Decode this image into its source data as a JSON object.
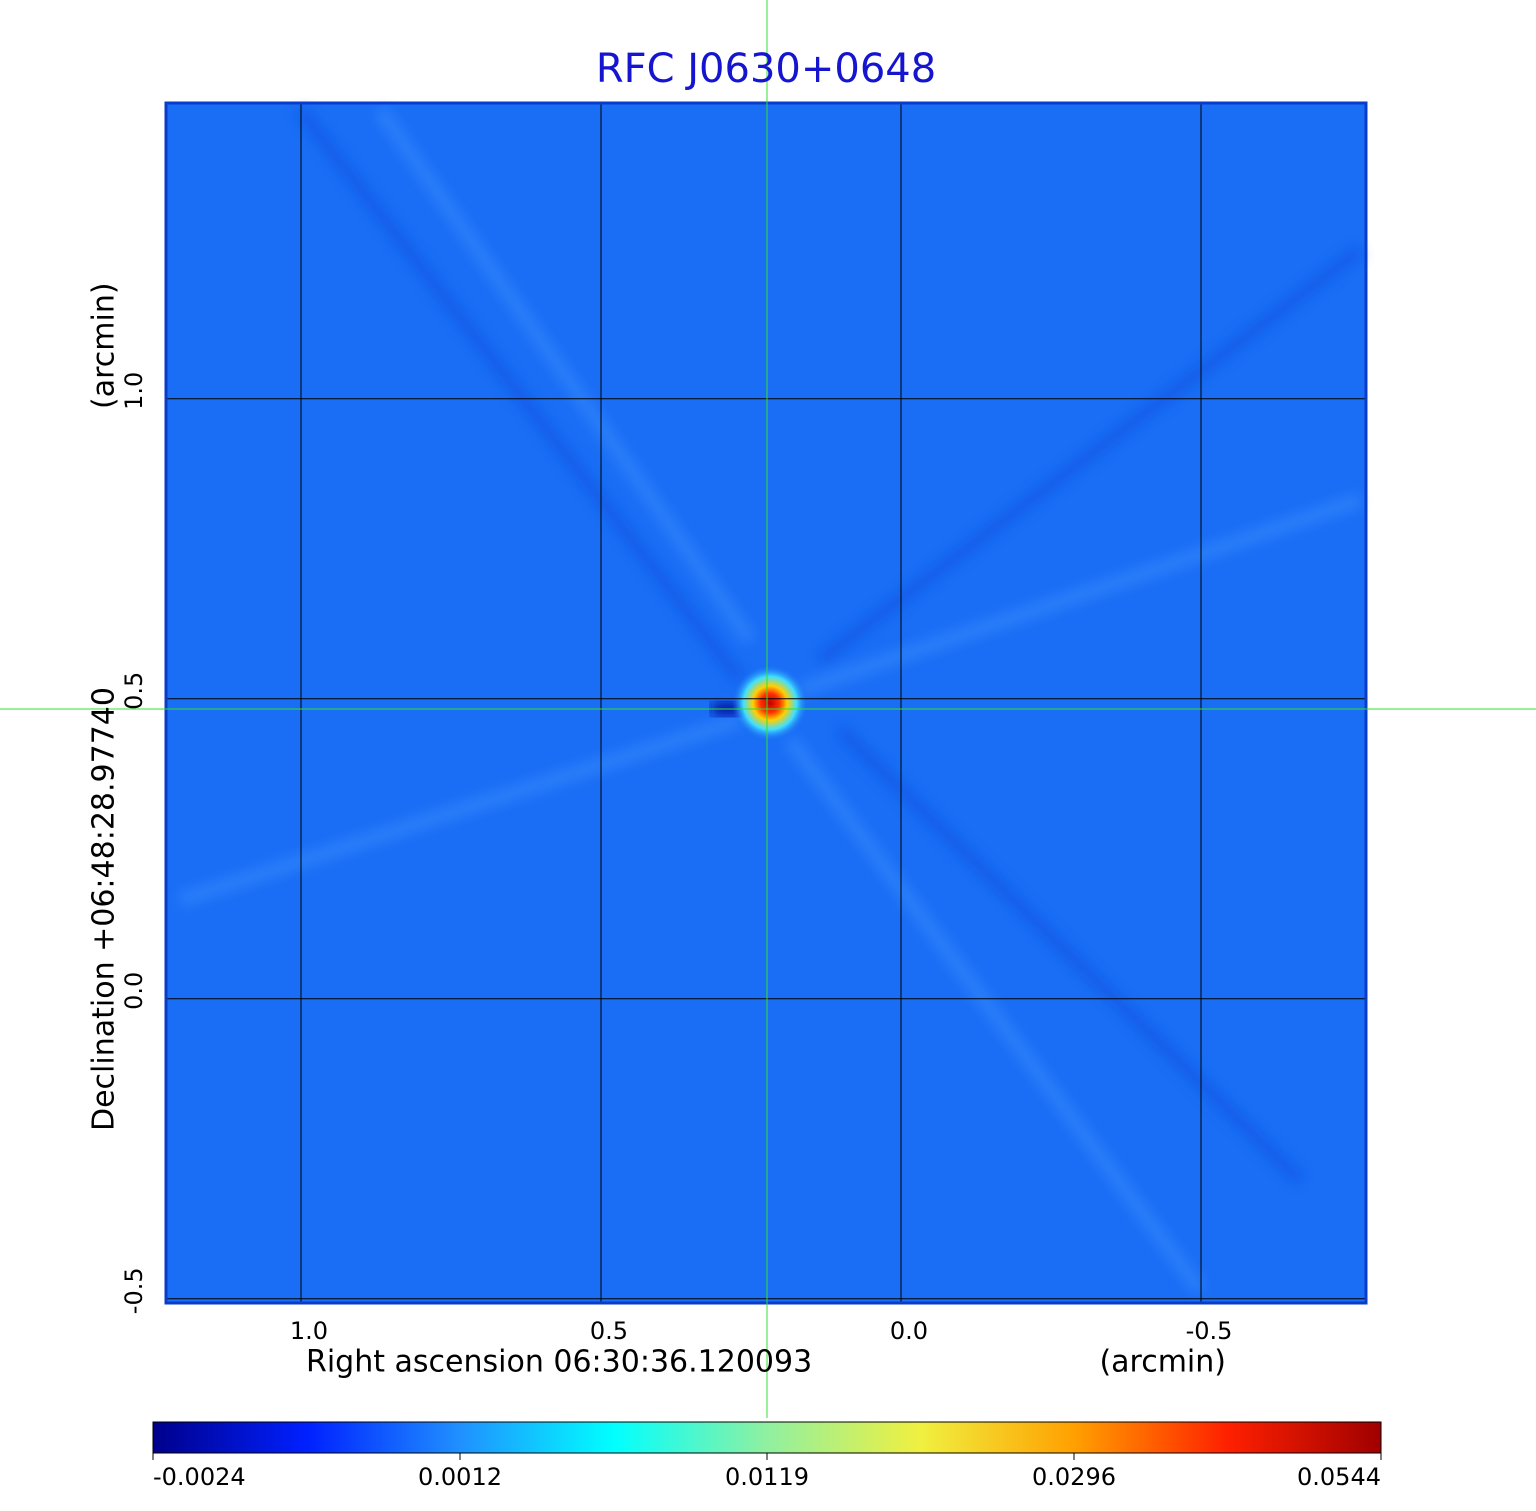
{
  "chart_data": {
    "type": "image",
    "title": "RFC J0630+0648",
    "xlabel": "Right ascension  06:30:36.120093",
    "xunit": "(arcmin)",
    "ylabel": "Declination  +06:48:28.97740",
    "yunit": "(arcmin)",
    "xlim": [
      1.225,
      -0.775
    ],
    "ylim": [
      -0.507,
      1.493
    ],
    "xticks": [
      {
        "value": 1,
        "label": "1.0"
      },
      0.5,
      {
        "value": 0,
        "label": "0.0"
      },
      -0.5
    ],
    "yticks": [
      -0.5,
      {
        "value": 0,
        "label": "0.0"
      },
      0.5,
      {
        "value": 1,
        "label": "1.0"
      }
    ],
    "grid": true,
    "colorbar": {
      "ticks": [
        -0.0024,
        0.0012,
        0.0119,
        0.0296,
        0.0544
      ],
      "colormap": [
        "#00008b",
        "#0020ff",
        "#2090ff",
        "#00ffff",
        "#90f0a0",
        "#f0f040",
        "#ffa000",
        "#ff2000",
        "#a00000"
      ]
    }
  }
}
